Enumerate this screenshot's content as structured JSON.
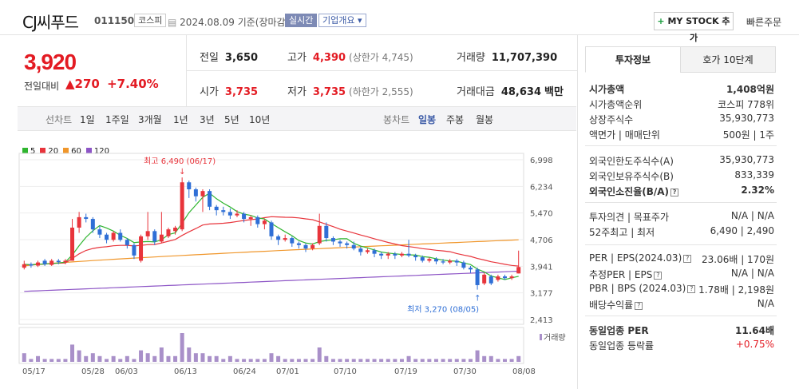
{
  "header": {
    "name": "CJ씨푸드",
    "code": "011150",
    "market": "코스피",
    "date": "2024.08.09",
    "basis": "기준(장마감)",
    "realtime": "실시간",
    "overview": "기업개요",
    "mystock": "MY STOCK 추가",
    "quick_order": "빠른주문"
  },
  "price": {
    "current": "3,920",
    "change_label": "전일대비",
    "change": "270",
    "change_pct": "+7.40%"
  },
  "stats": {
    "prev_close_label": "전일",
    "prev_close": "3,650",
    "high_label": "고가",
    "high": "4,390",
    "upper_limit": "(상한가 4,745)",
    "volume_label": "거래량",
    "volume": "11,707,390",
    "open_label": "시가",
    "open": "3,735",
    "low_label": "저가",
    "low": "3,735",
    "lower_limit": "(하한가 2,555)",
    "amount_label": "거래대금",
    "amount": "48,634",
    "amount_unit": "백만"
  },
  "toolbar": {
    "line_chart": "선차트",
    "periods": [
      "1일",
      "1주일",
      "3개월",
      "1년",
      "3년",
      "5년",
      "10년"
    ],
    "candle_chart": "봉차트",
    "candle_periods": [
      "일봉",
      "주봉",
      "월봉"
    ]
  },
  "side": {
    "tabs": [
      "투자정보",
      "호가 10단계"
    ],
    "rows": [
      {
        "k": "시가총액",
        "v": "1,408억원"
      },
      {
        "k": "시가총액순위",
        "v": "코스피 778위"
      },
      {
        "k": "상장주식수",
        "v": "35,930,773"
      },
      {
        "k": "액면가 | 매매단위",
        "v": "500원 | 1주"
      },
      {
        "k": "외국인한도주식수(A)",
        "v": "35,930,773"
      },
      {
        "k": "외국인보유주식수(B)",
        "v": "833,339"
      },
      {
        "k": "외국인소진율(B/A)",
        "v": "2.32%"
      },
      {
        "k": "투자의견 | 목표주가",
        "v": "N/A | N/A"
      },
      {
        "k": "52주최고 | 최저",
        "v": "6,490 | 2,490"
      },
      {
        "k": "PER | EPS(2024.03)",
        "v": "23.06배 | 170원"
      },
      {
        "k": "추정PER | EPS",
        "v": "N/A | N/A"
      },
      {
        "k": "PBR | BPS (2024.03)",
        "v": "1.78배 | 2,198원"
      },
      {
        "k": "배당수익률",
        "v": "N/A"
      },
      {
        "k": "동일업종 PER",
        "v": "11.64배"
      },
      {
        "k": "동일업종 등락률",
        "v": "+0.75%"
      }
    ]
  },
  "chart_data": {
    "type": "candlestick",
    "legend": [
      {
        "name": "5",
        "color": "#2fb52f"
      },
      {
        "name": "20",
        "color": "#e8343b"
      },
      {
        "name": "60",
        "color": "#f0962a"
      },
      {
        "name": "120",
        "color": "#8d55c6"
      }
    ],
    "ylim": [
      2413,
      6998
    ],
    "y_ticks": [
      "6,998",
      "6,234",
      "5,470",
      "4,706",
      "3,941",
      "3,177",
      "2,413"
    ],
    "x_ticks": [
      "05/17",
      "05/28",
      "06/03",
      "06/13",
      "06/24",
      "07/01",
      "07/10",
      "07/19",
      "07/30",
      "08/08"
    ],
    "volume_label": "거래량",
    "high_annotation": "최고 6,490 (06/17)",
    "low_annotation": "최저 3,270 (08/05)",
    "candles": [
      {
        "o": 3900,
        "c": 4000,
        "h": 4100,
        "l": 3850
      },
      {
        "o": 4000,
        "c": 3960,
        "h": 4050,
        "l": 3900
      },
      {
        "o": 3960,
        "c": 4050,
        "h": 4100,
        "l": 3920
      },
      {
        "o": 4100,
        "c": 4000,
        "h": 4150,
        "l": 3950
      },
      {
        "o": 3980,
        "c": 4100,
        "h": 4150,
        "l": 3950
      },
      {
        "o": 4100,
        "c": 4060,
        "h": 4150,
        "l": 4000
      },
      {
        "o": 4060,
        "c": 4100,
        "h": 4150,
        "l": 4000
      },
      {
        "o": 4100,
        "c": 5050,
        "h": 5300,
        "l": 4100
      },
      {
        "o": 5050,
        "c": 5350,
        "h": 5500,
        "l": 4900
      },
      {
        "o": 5350,
        "c": 5300,
        "h": 5450,
        "l": 5200
      },
      {
        "o": 5300,
        "c": 5000,
        "h": 5350,
        "l": 4900
      },
      {
        "o": 5000,
        "c": 4850,
        "h": 5100,
        "l": 4750
      },
      {
        "o": 4850,
        "c": 4700,
        "h": 4900,
        "l": 4600
      },
      {
        "o": 4700,
        "c": 4900,
        "h": 4950,
        "l": 4650
      },
      {
        "o": 4900,
        "c": 4700,
        "h": 5000,
        "l": 4650
      },
      {
        "o": 4700,
        "c": 4550,
        "h": 4750,
        "l": 4450
      },
      {
        "o": 4550,
        "c": 4250,
        "h": 4600,
        "l": 4150
      },
      {
        "o": 4100,
        "c": 4800,
        "h": 4850,
        "l": 4050
      },
      {
        "o": 4800,
        "c": 4950,
        "h": 5500,
        "l": 4700
      },
      {
        "o": 4950,
        "c": 4650,
        "h": 5000,
        "l": 4550
      },
      {
        "o": 4650,
        "c": 4850,
        "h": 5500,
        "l": 4600
      },
      {
        "o": 4800,
        "c": 5000,
        "h": 5050,
        "l": 4750
      },
      {
        "o": 4950,
        "c": 5050,
        "h": 5100,
        "l": 4850
      },
      {
        "o": 5000,
        "c": 6350,
        "h": 6490,
        "l": 4950
      },
      {
        "o": 6350,
        "c": 6150,
        "h": 6400,
        "l": 5900
      },
      {
        "o": 6150,
        "c": 5950,
        "h": 6200,
        "l": 5800
      },
      {
        "o": 5950,
        "c": 6100,
        "h": 6150,
        "l": 5500
      },
      {
        "o": 6100,
        "c": 5650,
        "h": 6150,
        "l": 5550
      },
      {
        "o": 5650,
        "c": 5550,
        "h": 5700,
        "l": 5400
      },
      {
        "o": 5550,
        "c": 5500,
        "h": 5650,
        "l": 5400
      },
      {
        "o": 5500,
        "c": 5400,
        "h": 5600,
        "l": 5300
      },
      {
        "o": 5400,
        "c": 5450,
        "h": 5550,
        "l": 5350
      },
      {
        "o": 5450,
        "c": 5300,
        "h": 5500,
        "l": 5200
      },
      {
        "o": 5300,
        "c": 5350,
        "h": 5400,
        "l": 5100
      },
      {
        "o": 5350,
        "c": 5150,
        "h": 5400,
        "l": 5050
      },
      {
        "o": 5150,
        "c": 5250,
        "h": 5300,
        "l": 5000
      },
      {
        "o": 5200,
        "c": 4800,
        "h": 5250,
        "l": 4700
      },
      {
        "o": 4800,
        "c": 4700,
        "h": 4850,
        "l": 4550
      },
      {
        "o": 4700,
        "c": 4750,
        "h": 4850,
        "l": 4650
      },
      {
        "o": 4750,
        "c": 4600,
        "h": 4800,
        "l": 4500
      },
      {
        "o": 4600,
        "c": 4550,
        "h": 4650,
        "l": 4450
      },
      {
        "o": 4550,
        "c": 4450,
        "h": 4600,
        "l": 4350
      },
      {
        "o": 4450,
        "c": 4550,
        "h": 4600,
        "l": 4400
      },
      {
        "o": 4600,
        "c": 5100,
        "h": 5450,
        "l": 4550
      },
      {
        "o": 5100,
        "c": 4750,
        "h": 5200,
        "l": 4650
      },
      {
        "o": 4750,
        "c": 4650,
        "h": 4800,
        "l": 4550
      },
      {
        "o": 4650,
        "c": 4600,
        "h": 4700,
        "l": 4500
      },
      {
        "o": 4600,
        "c": 4550,
        "h": 4650,
        "l": 4450
      },
      {
        "o": 4550,
        "c": 4450,
        "h": 4650,
        "l": 4400
      },
      {
        "o": 4450,
        "c": 4350,
        "h": 4500,
        "l": 4250
      },
      {
        "o": 4350,
        "c": 4400,
        "h": 4450,
        "l": 4300
      },
      {
        "o": 4400,
        "c": 4300,
        "h": 4450,
        "l": 4200
      },
      {
        "o": 4300,
        "c": 4250,
        "h": 4350,
        "l": 4150
      },
      {
        "o": 4250,
        "c": 4300,
        "h": 4350,
        "l": 4150
      },
      {
        "o": 4300,
        "c": 4250,
        "h": 4350,
        "l": 4150
      },
      {
        "o": 4250,
        "c": 4300,
        "h": 4350,
        "l": 4200
      },
      {
        "o": 4300,
        "c": 4250,
        "h": 4700,
        "l": 4200
      },
      {
        "o": 4250,
        "c": 4200,
        "h": 4300,
        "l": 4100
      },
      {
        "o": 4200,
        "c": 4100,
        "h": 4250,
        "l": 4050
      },
      {
        "o": 4100,
        "c": 4150,
        "h": 4200,
        "l": 4050
      },
      {
        "o": 4150,
        "c": 4080,
        "h": 4200,
        "l": 4000
      },
      {
        "o": 4080,
        "c": 4050,
        "h": 4150,
        "l": 4000
      },
      {
        "o": 4050,
        "c": 4100,
        "h": 4150,
        "l": 4000
      },
      {
        "o": 4100,
        "c": 4050,
        "h": 4150,
        "l": 3950
      },
      {
        "o": 4050,
        "c": 3900,
        "h": 4100,
        "l": 3850
      },
      {
        "o": 3900,
        "c": 3850,
        "h": 3950,
        "l": 3750
      },
      {
        "o": 3850,
        "c": 3400,
        "h": 3900,
        "l": 3270
      },
      {
        "o": 3450,
        "c": 3700,
        "h": 3750,
        "l": 3400
      },
      {
        "o": 3650,
        "c": 3450,
        "h": 3700,
        "l": 3400
      },
      {
        "o": 3550,
        "c": 3650,
        "h": 3700,
        "l": 3500
      },
      {
        "o": 3650,
        "c": 3600,
        "h": 3700,
        "l": 3550
      },
      {
        "o": 3600,
        "c": 3650,
        "h": 3700,
        "l": 3550
      },
      {
        "o": 3735,
        "c": 3920,
        "h": 4390,
        "l": 3735
      }
    ],
    "volumes": [
      3,
      1,
      2,
      1,
      1,
      1,
      1,
      6,
      4,
      2,
      3,
      2,
      1,
      2,
      1,
      2,
      1,
      4,
      3,
      2,
      5,
      2,
      2,
      10,
      5,
      3,
      3,
      2,
      2,
      1,
      2,
      1,
      1,
      1,
      1,
      1,
      3,
      2,
      1,
      1,
      1,
      1,
      1,
      5,
      2,
      1,
      1,
      1,
      1,
      1,
      1,
      1,
      1,
      1,
      1,
      1,
      2,
      1,
      1,
      1,
      1,
      1,
      1,
      1,
      1,
      1,
      4,
      2,
      2,
      1,
      1,
      1,
      2
    ]
  }
}
